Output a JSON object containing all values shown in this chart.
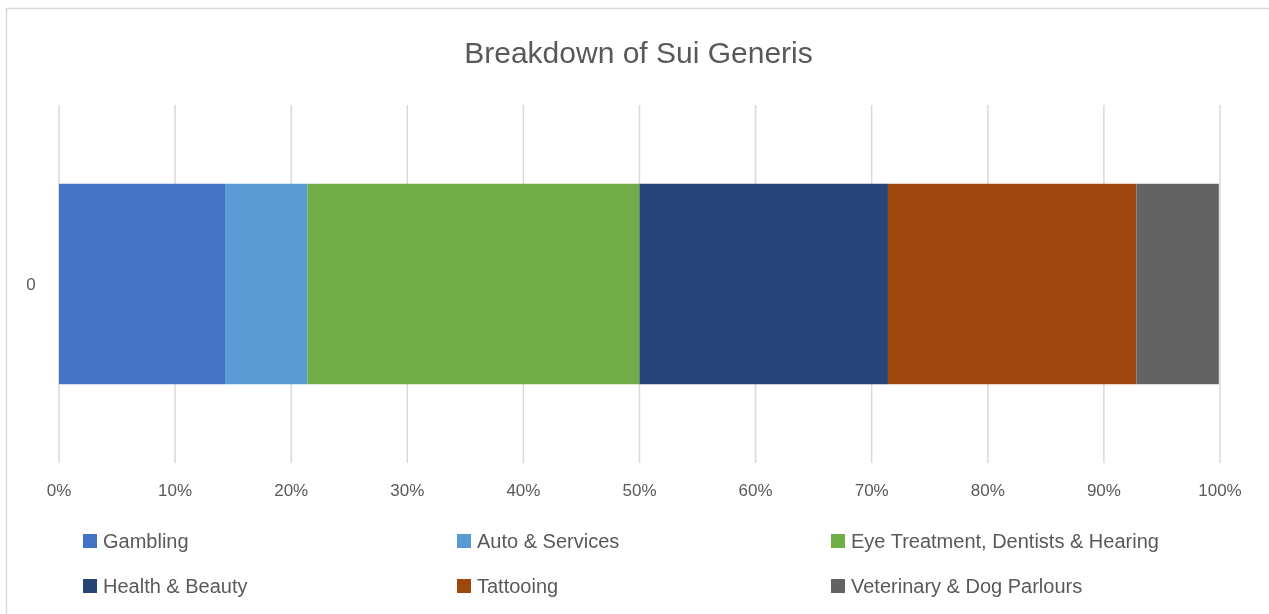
{
  "chart_data": {
    "type": "bar",
    "title": "Breakdown of Sui Generis",
    "orientation": "horizontal",
    "stacked": true,
    "categories": [
      "0"
    ],
    "series": [
      {
        "name": "Gambling",
        "color": "#4472c4",
        "values": [
          14.3
        ]
      },
      {
        "name": "Auto & Services",
        "color": "#5b9bd5",
        "values": [
          7.1
        ]
      },
      {
        "name": "Eye Treatment, Dentists & Hearing",
        "color": "#70ad47",
        "values": [
          28.6
        ]
      },
      {
        "name": "Health & Beauty",
        "color": "#264478",
        "values": [
          21.4
        ]
      },
      {
        "name": "Tattooing",
        "color": "#9e480e",
        "values": [
          21.4
        ]
      },
      {
        "name": "Veterinary & Dog Parlours",
        "color": "#636363",
        "values": [
          7.1
        ]
      }
    ],
    "xlim": [
      0,
      100
    ],
    "xticks": [
      {
        "value": 0,
        "label": "0%"
      },
      {
        "value": 10,
        "label": "10%"
      },
      {
        "value": 20,
        "label": "20%"
      },
      {
        "value": 30,
        "label": "30%"
      },
      {
        "value": 40,
        "label": "40%"
      },
      {
        "value": 50,
        "label": "50%"
      },
      {
        "value": 60,
        "label": "60%"
      },
      {
        "value": 70,
        "label": "70%"
      },
      {
        "value": 80,
        "label": "80%"
      },
      {
        "value": 90,
        "label": "90%"
      },
      {
        "value": 100,
        "label": "100%"
      }
    ],
    "grid": "x",
    "legend": "bottom"
  }
}
